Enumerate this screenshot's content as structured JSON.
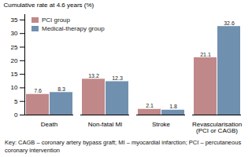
{
  "chart_data": {
    "type": "bar",
    "categories": [
      "Death",
      "Non-fatal MI",
      "Stroke",
      "Revascularisation\n(PCI or CAGB)"
    ],
    "series": [
      {
        "name": "PCI group",
        "color": "#c08888",
        "values": [
          7.6,
          13.2,
          2.1,
          21.1
        ]
      },
      {
        "name": "Medical-therapy group",
        "color": "#7090b0",
        "values": [
          8.3,
          12.3,
          1.8,
          32.6
        ]
      }
    ],
    "ylabel": "Cumulative rate at 4.6 years (%)",
    "ylim": [
      0,
      37
    ],
    "yticks": [
      0,
      5,
      10,
      15,
      20,
      25,
      30,
      35
    ],
    "grid": false,
    "legend": "upper left",
    "data_labels": true,
    "annotations": [
      "Key: CAGB – coronary artery bypass graft; MI – myocardial infarction; PCI – percutaneous\ncoronary intervention"
    ]
  }
}
